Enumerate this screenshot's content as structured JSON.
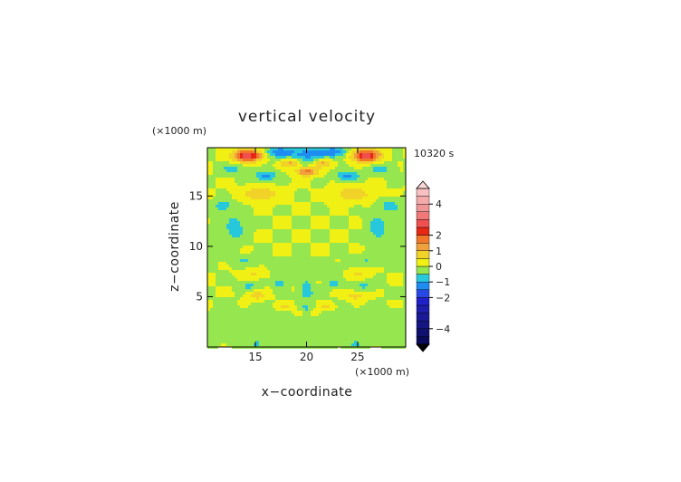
{
  "chart_data": {
    "type": "heatmap",
    "title": "vertical velocity",
    "time_label": "10320 s",
    "xlabel": "x−coordinate",
    "ylabel": "z−coordinate",
    "x_unit": "(×1000 m)",
    "y_unit": "(×1000 m)",
    "xlim": [
      10.3,
      29.7
    ],
    "ylim": [
      0,
      19.8
    ],
    "x_ticks": [
      15,
      20,
      25
    ],
    "y_ticks": [
      5,
      10,
      15
    ],
    "colorbar": {
      "tick_labels": [
        "4",
        "2",
        "1",
        "0",
        "−1",
        "−2",
        "−4"
      ],
      "tick_values": [
        4,
        2,
        1,
        0,
        -1,
        -2,
        -4
      ],
      "levels": [
        {
          "min": -5.0,
          "max": -4.5,
          "color": "#0a0a5a"
        },
        {
          "min": -4.5,
          "max": -4.0,
          "color": "#10106e"
        },
        {
          "min": -4.0,
          "max": -3.5,
          "color": "#161682"
        },
        {
          "min": -3.5,
          "max": -3.0,
          "color": "#1a1a96"
        },
        {
          "min": -3.0,
          "max": -2.5,
          "color": "#1e1eaa"
        },
        {
          "min": -2.5,
          "max": -2.0,
          "color": "#2020c8"
        },
        {
          "min": -2.0,
          "max": -1.5,
          "color": "#2848e6"
        },
        {
          "min": -1.5,
          "max": -1.0,
          "color": "#1e8cf0"
        },
        {
          "min": -1.0,
          "max": -0.5,
          "color": "#28c8dc"
        },
        {
          "min": -0.5,
          "max": 0.0,
          "color": "#96e650"
        },
        {
          "min": 0.0,
          "max": 0.5,
          "color": "#f0f014"
        },
        {
          "min": 0.5,
          "max": 1.0,
          "color": "#f0d228"
        },
        {
          "min": 1.0,
          "max": 1.5,
          "color": "#f0a03c"
        },
        {
          "min": 1.5,
          "max": 2.0,
          "color": "#f07828"
        },
        {
          "min": 2.0,
          "max": 2.5,
          "color": "#e62814"
        },
        {
          "min": 2.5,
          "max": 3.0,
          "color": "#f05050"
        },
        {
          "min": 3.0,
          "max": 3.5,
          "color": "#f07878"
        },
        {
          "min": 3.5,
          "max": 4.0,
          "color": "#f09696"
        },
        {
          "min": 4.0,
          "max": 4.5,
          "color": "#f5aaaa"
        },
        {
          "min": 4.5,
          "max": 5.0,
          "color": "#f8c0c0"
        }
      ]
    },
    "features": [
      {
        "x": 14.2,
        "z": 19.0,
        "rx": 1.3,
        "rz": 0.6,
        "w": 3.0
      },
      {
        "x": 25.8,
        "z": 19.0,
        "rx": 1.3,
        "rz": 0.6,
        "w": 3.0
      },
      {
        "x": 20.0,
        "z": 19.1,
        "rx": 2.6,
        "rz": 0.9,
        "w": -1.2
      },
      {
        "x": 17.2,
        "z": 19.4,
        "rx": 1.2,
        "rz": 0.5,
        "w": -1.0
      },
      {
        "x": 22.8,
        "z": 19.4,
        "rx": 1.2,
        "rz": 0.5,
        "w": -1.0
      },
      {
        "x": 18.4,
        "z": 18.3,
        "rx": 1.0,
        "rz": 0.5,
        "w": 1.4
      },
      {
        "x": 21.6,
        "z": 18.3,
        "rx": 1.0,
        "rz": 0.5,
        "w": 1.4
      },
      {
        "x": 20.0,
        "z": 17.4,
        "rx": 1.0,
        "rz": 0.4,
        "w": 1.8
      },
      {
        "x": 16.0,
        "z": 17.0,
        "rx": 1.1,
        "rz": 0.5,
        "w": -1.2
      },
      {
        "x": 24.0,
        "z": 17.0,
        "rx": 1.1,
        "rz": 0.5,
        "w": -1.2
      },
      {
        "x": 12.8,
        "z": 17.7,
        "rx": 1.2,
        "rz": 0.5,
        "w": -0.7
      },
      {
        "x": 27.2,
        "z": 17.7,
        "rx": 1.2,
        "rz": 0.5,
        "w": -0.7
      },
      {
        "x": 15.5,
        "z": 15.2,
        "rx": 1.8,
        "rz": 0.7,
        "w": 0.9
      },
      {
        "x": 24.5,
        "z": 15.2,
        "rx": 1.8,
        "rz": 0.7,
        "w": 0.9
      },
      {
        "x": 11.8,
        "z": 14.0,
        "rx": 1.0,
        "rz": 0.6,
        "w": -0.8
      },
      {
        "x": 28.2,
        "z": 14.0,
        "rx": 1.0,
        "rz": 0.6,
        "w": -0.8
      },
      {
        "x": 13.0,
        "z": 11.8,
        "rx": 0.9,
        "rz": 1.3,
        "w": -0.9
      },
      {
        "x": 27.0,
        "z": 11.8,
        "rx": 0.9,
        "rz": 1.3,
        "w": -0.9
      },
      {
        "x": 10.8,
        "z": 10.5,
        "rx": 0.8,
        "rz": 1.5,
        "w": -0.4
      },
      {
        "x": 29.2,
        "z": 10.5,
        "rx": 0.8,
        "rz": 1.5,
        "w": -0.4
      },
      {
        "x": 20.0,
        "z": 7.6,
        "rx": 3.5,
        "rz": 0.7,
        "w": -0.5
      },
      {
        "x": 14.0,
        "z": 8.6,
        "rx": 1.5,
        "rz": 0.5,
        "w": -0.5
      },
      {
        "x": 26.0,
        "z": 8.6,
        "rx": 1.5,
        "rz": 0.5,
        "w": -0.5
      },
      {
        "x": 15.0,
        "z": 7.3,
        "rx": 1.2,
        "rz": 0.5,
        "w": 0.6
      },
      {
        "x": 25.0,
        "z": 7.3,
        "rx": 1.2,
        "rz": 0.5,
        "w": 0.6
      },
      {
        "x": 17.3,
        "z": 6.3,
        "rx": 0.6,
        "rz": 0.4,
        "w": -0.8
      },
      {
        "x": 22.7,
        "z": 6.3,
        "rx": 0.6,
        "rz": 0.4,
        "w": -0.8
      },
      {
        "x": 20.0,
        "z": 6.1,
        "rx": 0.5,
        "rz": 0.4,
        "w": -0.9
      },
      {
        "x": 14.3,
        "z": 6.1,
        "rx": 1.0,
        "rz": 0.5,
        "w": -0.6
      },
      {
        "x": 25.7,
        "z": 6.1,
        "rx": 1.0,
        "rz": 0.5,
        "w": -0.6
      },
      {
        "x": 15.2,
        "z": 5.1,
        "rx": 0.9,
        "rz": 0.4,
        "w": 0.9
      },
      {
        "x": 24.8,
        "z": 5.1,
        "rx": 0.9,
        "rz": 0.4,
        "w": 0.9
      },
      {
        "x": 20.0,
        "z": 5.3,
        "rx": 0.7,
        "rz": 0.5,
        "w": -1.0
      },
      {
        "x": 18.0,
        "z": 4.0,
        "rx": 0.8,
        "rz": 0.4,
        "w": 0.7
      },
      {
        "x": 22.0,
        "z": 4.0,
        "rx": 0.8,
        "rz": 0.4,
        "w": 0.7
      },
      {
        "x": 19.2,
        "z": 3.3,
        "rx": 0.5,
        "rz": 0.4,
        "w": 0.6
      },
      {
        "x": 20.8,
        "z": 3.3,
        "rx": 0.5,
        "rz": 0.4,
        "w": 0.6
      },
      {
        "x": 20.0,
        "z": 3.9,
        "rx": 0.7,
        "rz": 0.4,
        "w": -0.5
      },
      {
        "x": 20.0,
        "z": 2.0,
        "rx": 9.0,
        "rz": 1.6,
        "w": -0.45
      },
      {
        "x": 15.2,
        "z": 0.3,
        "rx": 0.6,
        "rz": 0.3,
        "w": -0.6
      },
      {
        "x": 24.8,
        "z": 0.3,
        "rx": 0.6,
        "rz": 0.3,
        "w": -0.6
      }
    ]
  }
}
